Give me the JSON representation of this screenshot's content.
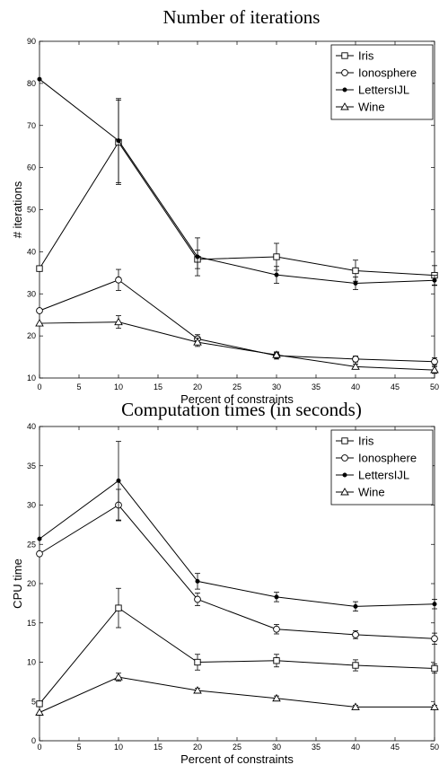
{
  "chart_data": [
    {
      "type": "line",
      "title": "Number of iterations",
      "xlabel": "Percent of constraints",
      "ylabel": "# iterations",
      "xlim": [
        0,
        50
      ],
      "ylim": [
        10,
        90
      ],
      "xticks": [
        0,
        5,
        10,
        15,
        20,
        25,
        30,
        35,
        40,
        45,
        50
      ],
      "yticks": [
        10,
        20,
        30,
        40,
        50,
        60,
        70,
        80,
        90
      ],
      "grid": false,
      "legend_position": "top-right",
      "x": [
        0,
        10,
        20,
        30,
        40,
        50
      ],
      "series": [
        {
          "name": "Iris",
          "marker": "square",
          "values": [
            36,
            66,
            38.2,
            38.8,
            35.5,
            34.4
          ],
          "errors": [
            0,
            10,
            2.2,
            3.2,
            2.5,
            2.3
          ]
        },
        {
          "name": "Ionosphere",
          "marker": "circle",
          "values": [
            26,
            33.3,
            19.3,
            15.3,
            14.5,
            13.9
          ],
          "errors": [
            0,
            2.5,
            1,
            0.8,
            0.7,
            0.9
          ]
        },
        {
          "name": "LettersIJL",
          "marker": "dot",
          "values": [
            81,
            66.4,
            38.8,
            34.5,
            32.5,
            33.2
          ],
          "errors": [
            0,
            10,
            4.5,
            2,
            1.5,
            1.2
          ]
        },
        {
          "name": "Wine",
          "marker": "triangle",
          "values": [
            23,
            23.3,
            18.5,
            15.5,
            12.7,
            11.9
          ],
          "errors": [
            0,
            1.5,
            1,
            0.7,
            0.6,
            0.8
          ]
        }
      ]
    },
    {
      "type": "line",
      "title": "Computation times (in seconds)",
      "xlabel": "Percent of constraints",
      "ylabel": "CPU time",
      "xlim": [
        0,
        50
      ],
      "ylim": [
        0,
        40
      ],
      "xticks": [
        0,
        5,
        10,
        15,
        20,
        25,
        30,
        35,
        40,
        45,
        50
      ],
      "yticks": [
        0,
        5,
        10,
        15,
        20,
        25,
        30,
        35,
        40
      ],
      "grid": false,
      "legend_position": "top-right",
      "x": [
        0,
        10,
        20,
        30,
        40,
        50
      ],
      "series": [
        {
          "name": "Iris",
          "marker": "square",
          "values": [
            4.7,
            16.9,
            10,
            10.2,
            9.6,
            9.2
          ],
          "errors": [
            0,
            2.5,
            1,
            0.8,
            0.7,
            0.6
          ]
        },
        {
          "name": "Ionosphere",
          "marker": "circle",
          "values": [
            23.8,
            30,
            18,
            14.2,
            13.5,
            13
          ],
          "errors": [
            0,
            2,
            0.8,
            0.6,
            0.5,
            0.7
          ]
        },
        {
          "name": "LettersIJL",
          "marker": "dot",
          "values": [
            25.7,
            33.1,
            20.3,
            18.3,
            17.1,
            17.4
          ],
          "errors": [
            0,
            5,
            1,
            0.6,
            0.6,
            0.6
          ]
        },
        {
          "name": "Wine",
          "marker": "triangle",
          "values": [
            3.6,
            8.1,
            6.4,
            5.4,
            4.3,
            4.3
          ],
          "errors": [
            0,
            0.5,
            0.3,
            0.3,
            0.2,
            0.2
          ]
        }
      ]
    }
  ]
}
